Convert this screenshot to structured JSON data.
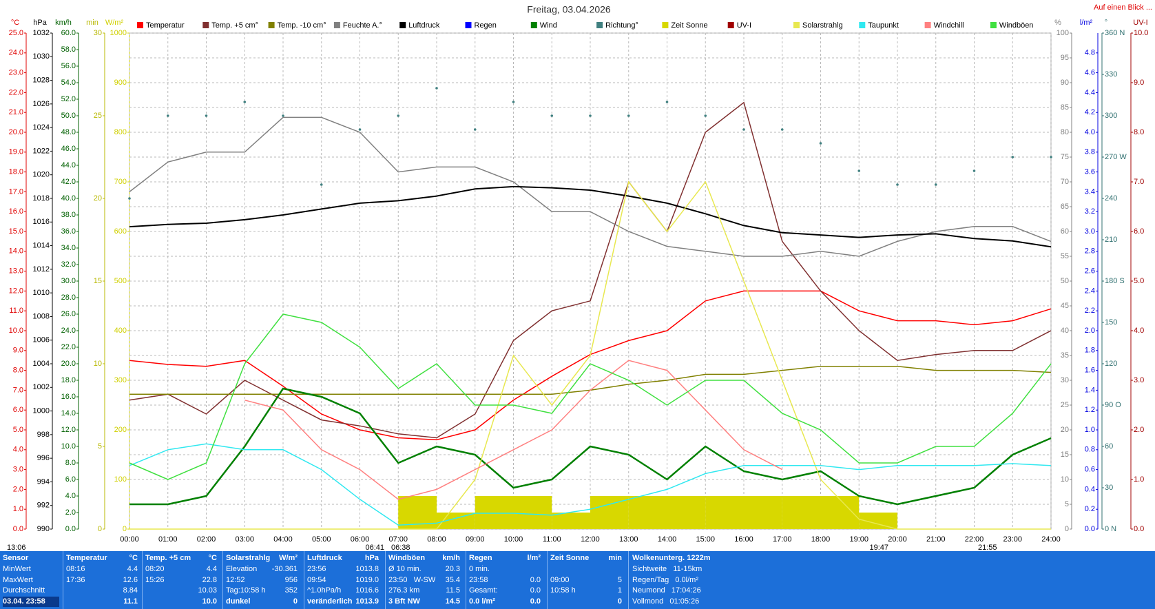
{
  "header": {
    "title": "Freitag, 03.04.2026",
    "link": "Auf einen Blick ..."
  },
  "chart_data": {
    "type": "line",
    "xlim": [
      0,
      24
    ],
    "xticks": [
      {
        "value": 0,
        "label": "00:00"
      },
      {
        "value": 1,
        "label": "01:00"
      },
      {
        "value": 2,
        "label": "02:00"
      },
      {
        "value": 3,
        "label": "03:00"
      },
      {
        "value": 4,
        "label": "04:00"
      },
      {
        "value": 5,
        "label": "05:00"
      },
      {
        "value": 6,
        "label": "06:00"
      },
      {
        "value": 7,
        "label": "07:00"
      },
      {
        "value": 8,
        "label": "08:00"
      },
      {
        "value": 9,
        "label": "09:00"
      },
      {
        "value": 10,
        "label": "10:00"
      },
      {
        "value": 11,
        "label": "11:00"
      },
      {
        "value": 12,
        "label": "12:00"
      },
      {
        "value": 13,
        "label": "13:00"
      },
      {
        "value": 14,
        "label": "14:00"
      },
      {
        "value": 15,
        "label": "15:00"
      },
      {
        "value": 16,
        "label": "16:00"
      },
      {
        "value": 17,
        "label": "17:00"
      },
      {
        "value": 18,
        "label": "18:00"
      },
      {
        "value": 19,
        "label": "19:00"
      },
      {
        "value": 20,
        "label": "20:00"
      },
      {
        "value": 21,
        "label": "21:00"
      },
      {
        "value": 22,
        "label": "22:00"
      },
      {
        "value": 23,
        "label": "23:00"
      },
      {
        "value": 24,
        "label": "24:00"
      }
    ],
    "axes": [
      {
        "unit": "°C",
        "color": "#e00000",
        "lim": [
          0,
          25
        ],
        "ticks": [
          {
            "value": 0,
            "label": "0.0"
          },
          {
            "value": 1,
            "label": "1.0"
          },
          {
            "value": 2,
            "label": "2.0"
          },
          {
            "value": 3,
            "label": "3.0"
          },
          {
            "value": 4,
            "label": "4.0"
          },
          {
            "value": 5,
            "label": "5.0"
          },
          {
            "value": 6,
            "label": "6.0"
          },
          {
            "value": 7,
            "label": "7.0"
          },
          {
            "value": 8,
            "label": "8.0"
          },
          {
            "value": 9,
            "label": "9.0"
          },
          {
            "value": 10,
            "label": "10.0"
          },
          {
            "value": 11,
            "label": "11.0"
          },
          {
            "value": 12,
            "label": "12.0"
          },
          {
            "value": 13,
            "label": "13.0"
          },
          {
            "value": 14,
            "label": "14.0"
          },
          {
            "value": 15,
            "label": "15.0"
          },
          {
            "value": 16,
            "label": "16.0"
          },
          {
            "value": 17,
            "label": "17.0"
          },
          {
            "value": 18,
            "label": "18.0"
          },
          {
            "value": 19,
            "label": "19.0"
          },
          {
            "value": 20,
            "label": "20.0"
          },
          {
            "value": 21,
            "label": "21.0"
          },
          {
            "value": 22,
            "label": "22.0"
          },
          {
            "value": 23,
            "label": "23.0"
          },
          {
            "value": 24,
            "label": "24.0"
          },
          {
            "value": 25,
            "label": "25.0"
          }
        ]
      },
      {
        "unit": "hPa",
        "color": "#000000",
        "lim": [
          990,
          1032
        ],
        "ticks": [
          990,
          992,
          994,
          996,
          998,
          1000,
          1002,
          1004,
          1006,
          1008,
          1010,
          1012,
          1014,
          1016,
          1018,
          1020,
          1022,
          1024,
          1026,
          1028,
          1030,
          1032
        ]
      },
      {
        "unit": "km/h",
        "color": "#006000",
        "lim": [
          0,
          60
        ],
        "ticks": [
          {
            "value": 0,
            "label": "0.0"
          },
          {
            "value": 2,
            "label": "2.0"
          },
          {
            "value": 4,
            "label": "4.0"
          },
          {
            "value": 6,
            "label": "6.0"
          },
          {
            "value": 8,
            "label": "8.0"
          },
          {
            "value": 10,
            "label": "10.0"
          },
          {
            "value": 12,
            "label": "12.0"
          },
          {
            "value": 14,
            "label": "14.0"
          },
          {
            "value": 16,
            "label": "16.0"
          },
          {
            "value": 18,
            "label": "18.0"
          },
          {
            "value": 20,
            "label": "20.0"
          },
          {
            "value": 22,
            "label": "22.0"
          },
          {
            "value": 24,
            "label": "24.0"
          },
          {
            "value": 26,
            "label": "26.0"
          },
          {
            "value": 28,
            "label": "28.0"
          },
          {
            "value": 30,
            "label": "30.0"
          },
          {
            "value": 32,
            "label": "32.0"
          },
          {
            "value": 34,
            "label": "34.0"
          },
          {
            "value": 36,
            "label": "36.0"
          },
          {
            "value": 38,
            "label": "38.0"
          },
          {
            "value": 40,
            "label": "40.0"
          },
          {
            "value": 42,
            "label": "42.0"
          },
          {
            "value": 44,
            "label": "44.0"
          },
          {
            "value": 46,
            "label": "46.0"
          },
          {
            "value": 48,
            "label": "48.0"
          },
          {
            "value": 50,
            "label": "50.0"
          },
          {
            "value": 52,
            "label": "52.0"
          },
          {
            "value": 54,
            "label": "54.0"
          },
          {
            "value": 56,
            "label": "56.0"
          },
          {
            "value": 58,
            "label": "58.0"
          },
          {
            "value": 60,
            "label": "60.0"
          }
        ]
      },
      {
        "unit": "min",
        "color": "#b8b800",
        "lim": [
          0,
          30
        ],
        "ticks": [
          0,
          5,
          10,
          15,
          20,
          25,
          30
        ]
      },
      {
        "unit": "W/m²",
        "color": "#d0d000",
        "lim": [
          0,
          1000
        ],
        "ticks": [
          0,
          100,
          200,
          300,
          400,
          500,
          600,
          700,
          800,
          900,
          1000
        ]
      },
      {
        "unit": "%",
        "color": "#808080",
        "lim": [
          0,
          100
        ],
        "grid": true,
        "ticks": [
          0,
          5,
          10,
          15,
          20,
          25,
          30,
          35,
          40,
          45,
          50,
          55,
          60,
          65,
          70,
          75,
          80,
          85,
          90,
          95,
          100
        ]
      },
      {
        "unit": "l/m²",
        "color": "#0000e0",
        "lim": [
          0,
          5
        ],
        "ticks": [
          {
            "value": 0,
            "label": "0.0"
          },
          {
            "value": 0.2,
            "label": "0.2"
          },
          {
            "value": 0.4,
            "label": "0.4"
          },
          {
            "value": 0.6,
            "label": "0.6"
          },
          {
            "value": 0.8,
            "label": "0.8"
          },
          {
            "value": 1,
            "label": "1.0"
          },
          {
            "value": 1.2,
            "label": "1.2"
          },
          {
            "value": 1.4,
            "label": "1.4"
          },
          {
            "value": 1.6,
            "label": "1.6"
          },
          {
            "value": 1.8,
            "label": "1.8"
          },
          {
            "value": 2,
            "label": "2.0"
          },
          {
            "value": 2.2,
            "label": "2.2"
          },
          {
            "value": 2.4,
            "label": "2.4"
          },
          {
            "value": 2.6,
            "label": "2.6"
          },
          {
            "value": 2.8,
            "label": "2.8"
          },
          {
            "value": 3,
            "label": "3.0"
          },
          {
            "value": 3.2,
            "label": "3.2"
          },
          {
            "value": 3.4,
            "label": "3.4"
          },
          {
            "value": 3.6,
            "label": "3.6"
          },
          {
            "value": 3.8,
            "label": "3.8"
          },
          {
            "value": 4,
            "label": "4.0"
          },
          {
            "value": 4.2,
            "label": "4.2"
          },
          {
            "value": 4.4,
            "label": "4.4"
          },
          {
            "value": 4.6,
            "label": "4.6"
          },
          {
            "value": 4.8,
            "label": "4.8"
          }
        ]
      },
      {
        "unit": "°",
        "color": "#307070",
        "lim": [
          0,
          360
        ],
        "ticks": [
          {
            "value": 0,
            "label": "0 N"
          },
          30,
          60,
          {
            "value": 90,
            "label": "90 O"
          },
          120,
          150,
          {
            "value": 180,
            "label": "180 S"
          },
          210,
          240,
          {
            "value": 270,
            "label": "270 W"
          },
          300,
          330,
          {
            "value": 360,
            "label": "360 N"
          }
        ]
      },
      {
        "unit": "UV-I",
        "color": "#a00000",
        "lim": [
          0,
          10
        ],
        "ticks": [
          {
            "value": 0,
            "label": "0.0"
          },
          {
            "value": 1,
            "label": "1.0"
          },
          {
            "value": 2,
            "label": "2.0"
          },
          {
            "value": 3,
            "label": "3.0"
          },
          {
            "value": 4,
            "label": "4.0"
          },
          {
            "value": 5,
            "label": "5.0"
          },
          {
            "value": 6,
            "label": "6.0"
          },
          {
            "value": 7,
            "label": "7.0"
          },
          {
            "value": 8,
            "label": "8.0"
          },
          {
            "value": 9,
            "label": "9.0"
          },
          {
            "value": 10,
            "label": "10.0"
          }
        ]
      }
    ],
    "x": [
      0,
      1,
      2,
      3,
      4,
      5,
      6,
      7,
      8,
      9,
      10,
      11,
      12,
      13,
      14,
      15,
      16,
      17,
      18,
      19,
      20,
      21,
      22,
      23,
      24
    ],
    "series": [
      {
        "name": "Temperatur",
        "color": "#ff0000",
        "axis": 0,
        "values": [
          8.5,
          8.3,
          8.2,
          8.5,
          7.2,
          5.8,
          5.0,
          4.6,
          4.5,
          5.0,
          6.5,
          7.7,
          8.8,
          9.5,
          10.0,
          11.5,
          12.0,
          12.0,
          12.0,
          11.0,
          10.5,
          10.5,
          10.3,
          10.5,
          11.1
        ]
      },
      {
        "name": "Temp. +5 cm°",
        "color": "#803030",
        "axis": 0,
        "values": [
          6.5,
          6.8,
          5.8,
          7.5,
          6.5,
          5.5,
          5.2,
          4.8,
          4.6,
          5.8,
          9.5,
          11.0,
          11.5,
          17.5,
          15.0,
          20.0,
          21.5,
          14.5,
          12.0,
          10.0,
          8.5,
          8.8,
          9.0,
          9.0,
          10.0
        ]
      },
      {
        "name": "Temp. -10 cm°",
        "color": "#808000",
        "axis": 0,
        "values": [
          6.8,
          6.8,
          6.8,
          6.8,
          6.8,
          6.8,
          6.8,
          6.8,
          6.8,
          6.8,
          6.8,
          6.8,
          7.0,
          7.3,
          7.5,
          7.8,
          7.8,
          8.0,
          8.2,
          8.2,
          8.2,
          8.0,
          8.0,
          8.0,
          7.9
        ]
      },
      {
        "name": "Feuchte A.°",
        "color": "#808080",
        "axis": 5,
        "values": [
          68,
          74,
          76,
          76,
          83,
          83,
          80,
          72,
          73,
          73,
          70,
          64,
          64,
          60,
          57,
          56,
          55,
          55,
          56,
          55,
          58,
          60,
          61,
          61,
          58
        ]
      },
      {
        "name": "Luftdruck",
        "color": "#000000",
        "axis": 1,
        "values": [
          1015.6,
          1015.8,
          1015.9,
          1016.2,
          1016.6,
          1017.1,
          1017.6,
          1017.8,
          1018.2,
          1018.8,
          1019.0,
          1018.9,
          1018.7,
          1018.2,
          1017.6,
          1016.7,
          1015.7,
          1015.1,
          1014.9,
          1014.7,
          1014.9,
          1015.0,
          1014.6,
          1014.4,
          1013.9
        ]
      },
      {
        "name": "Regen",
        "color": "#0000ff",
        "axis": 6
      },
      {
        "name": "Wind",
        "color": "#008000",
        "axis": 2,
        "values": [
          3,
          3,
          4,
          10,
          17,
          16,
          14,
          8,
          10,
          9,
          5,
          6,
          10,
          9,
          6,
          10,
          7,
          6,
          7,
          4,
          3,
          4,
          5,
          9,
          11
        ]
      },
      {
        "name": "Richtung°",
        "color": "#408080",
        "axis": 7,
        "mark": "dots",
        "values": [
          240,
          300,
          300,
          310,
          300,
          250,
          290,
          300,
          320,
          290,
          310,
          300,
          300,
          300,
          310,
          300,
          290,
          290,
          280,
          260,
          250,
          250,
          260,
          270,
          270
        ]
      },
      {
        "name": "Zeit Sonne",
        "color": "#d8d800",
        "axis": 3,
        "mark": "bars",
        "values": [
          0,
          0,
          0,
          0,
          0,
          0,
          0,
          2,
          1,
          2,
          2,
          1,
          2,
          2,
          2,
          2,
          2,
          2,
          2,
          1,
          0,
          0,
          0,
          0,
          0
        ]
      },
      {
        "name": "UV-I",
        "color": "#a00000",
        "axis": 8
      },
      {
        "name": "Solarstrahlg",
        "color": "#e8e850",
        "axis": 4,
        "values": [
          0,
          0,
          0,
          0,
          0,
          0,
          0,
          0,
          0,
          100,
          350,
          250,
          350,
          700,
          600,
          700,
          500,
          300,
          100,
          20,
          0,
          0,
          0,
          0,
          0
        ]
      },
      {
        "name": "Taupunkt",
        "color": "#30e8f0",
        "axis": 0,
        "values": [
          3.2,
          4.0,
          4.3,
          4.0,
          4.0,
          3.0,
          1.5,
          0.2,
          0.3,
          0.8,
          0.8,
          0.7,
          1.0,
          1.5,
          2.0,
          2.8,
          3.2,
          3.2,
          3.2,
          3.0,
          3.2,
          3.2,
          3.2,
          3.3,
          3.2
        ]
      },
      {
        "name": "Windchill",
        "color": "#ff8080",
        "axis": 0,
        "values": [
          null,
          null,
          null,
          6.5,
          6.0,
          4.0,
          3.0,
          1.5,
          2.0,
          3.0,
          4.0,
          5.0,
          7.0,
          8.5,
          8.0,
          6.0,
          4.0,
          3.0,
          null,
          null,
          null,
          null,
          null,
          null,
          null
        ]
      },
      {
        "name": "Windböen",
        "color": "#40e040",
        "axis": 2,
        "values": [
          8,
          6,
          8,
          20,
          26,
          25,
          22,
          17,
          20,
          15,
          15,
          14,
          20,
          18,
          15,
          18,
          18,
          14,
          12,
          8,
          8,
          10,
          10,
          14,
          20
        ]
      }
    ],
    "markers": [
      "13:06",
      "06:41",
      "06:38",
      "19:47",
      "21:55"
    ]
  },
  "stats": {
    "header": [
      "Sensor",
      "Temperatur",
      "°C",
      "Temp. +5 cm",
      "°C",
      "Solarstrahlg",
      "W/m²",
      "Luftdruck",
      "hPa",
      "Windböen",
      "km/h",
      "Regen",
      "l/m²",
      "Zeit Sonne",
      "min",
      "Wolkenunterg. 1222m"
    ],
    "rows": [
      [
        "MinWert",
        "08:16",
        "4.4",
        "08:20",
        "4.4",
        "Elevation",
        "-30.361",
        "23:56",
        "1013.8",
        "Ø 10 min.",
        "20.3",
        "0 min.",
        null,
        null,
        null,
        "Sichtweite   11-15km"
      ],
      [
        "MaxWert",
        "17:36",
        "12.6",
        "15:26",
        "22.8",
        "12:52",
        "956",
        "09:54",
        "1019.0",
        "23:50   W-SW",
        "35.4",
        "23:58",
        "0.0",
        "09:00",
        "5",
        "Regen/Tag   0.0l/m²"
      ],
      [
        "Durchschnitt",
        null,
        "8.84",
        null,
        "10.03",
        "Tag:10:58 h",
        "352",
        "^1.0hPa/h",
        "1016.6",
        "276.3 km",
        "11.5",
        "Gesamt:",
        "0.0",
        "10:58 h",
        "1",
        "Neumond   17:04:26"
      ],
      [
        "03.04. 23:58",
        null,
        "11.1",
        null,
        "10.0",
        "dunkel",
        "0",
        "veränderlich",
        "1013.9",
        "3 Bft NW",
        "14.5",
        "0.0 l/m²",
        "0.0",
        null,
        "0",
        "Vollmond   01:05:26"
      ]
    ]
  }
}
